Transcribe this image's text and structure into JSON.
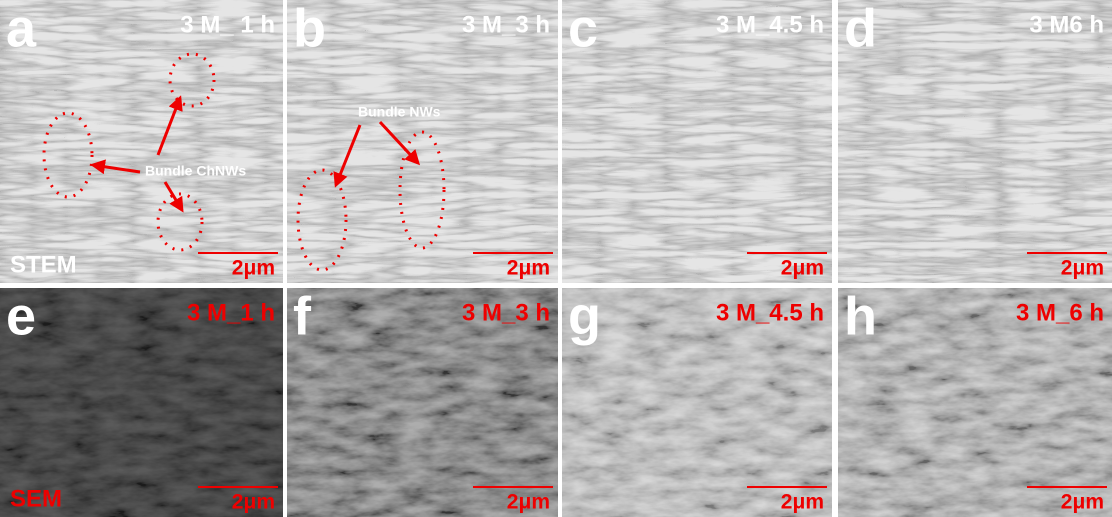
{
  "panels": [
    {
      "letter": "a",
      "label": "3 M_ 1 h",
      "scale": "2μm"
    },
    {
      "letter": "b",
      "label": "3 M_3 h",
      "scale": "2μm"
    },
    {
      "letter": "c",
      "label": "3 M_4.5 h",
      "scale": "2μm"
    },
    {
      "letter": "d",
      "label": "3 M6 h",
      "scale": "2μm"
    },
    {
      "letter": "e",
      "label": "3 M_1 h",
      "scale": "2μm"
    },
    {
      "letter": "f",
      "label": "3 M_3 h",
      "scale": "2μm"
    },
    {
      "letter": "g",
      "label": "3 M_4.5  h",
      "scale": "2μm"
    },
    {
      "letter": "h",
      "label": "3 M_6 h",
      "scale": "2μm"
    }
  ],
  "annotations": {
    "stem": "STEM",
    "sem": "SEM",
    "bundle_chnws": "Bundle ChNWs",
    "bundle_nws": "Bundle NWs"
  }
}
